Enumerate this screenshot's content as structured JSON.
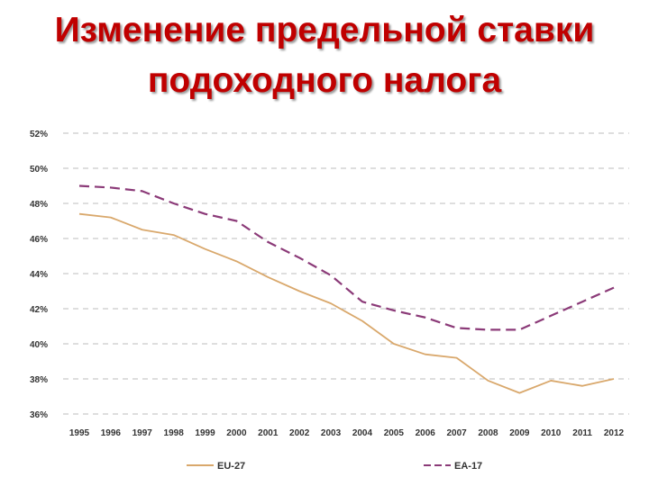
{
  "title_line1": "Изменение предельной ставки",
  "title_line2": "подоходного налога",
  "chart_data": {
    "type": "line",
    "categories": [
      "1995",
      "1996",
      "1997",
      "1998",
      "1999",
      "2000",
      "2001",
      "2002",
      "2003",
      "2004",
      "2005",
      "2006",
      "2007",
      "2008",
      "2009",
      "2010",
      "2011",
      "2012"
    ],
    "ylim": [
      36,
      52
    ],
    "yticks": [
      "36%",
      "38%",
      "40%",
      "42%",
      "44%",
      "46%",
      "48%",
      "50%",
      "52%"
    ],
    "grid": true,
    "legend_position": "bottom",
    "series": [
      {
        "name": "EU-27",
        "color": "#d9a86c",
        "dashed": false,
        "values": [
          47.4,
          47.2,
          46.5,
          46.2,
          45.4,
          44.7,
          43.8,
          43.0,
          42.3,
          41.3,
          40.0,
          39.4,
          39.2,
          37.9,
          37.2,
          37.9,
          37.6,
          38.0
        ]
      },
      {
        "name": "EA-17",
        "color": "#8b3a78",
        "dashed": true,
        "values": [
          49.0,
          48.9,
          48.7,
          48.0,
          47.4,
          47.0,
          45.8,
          44.9,
          43.9,
          42.4,
          41.9,
          41.5,
          40.9,
          40.8,
          40.8,
          41.6,
          42.4,
          43.2
        ]
      }
    ]
  }
}
